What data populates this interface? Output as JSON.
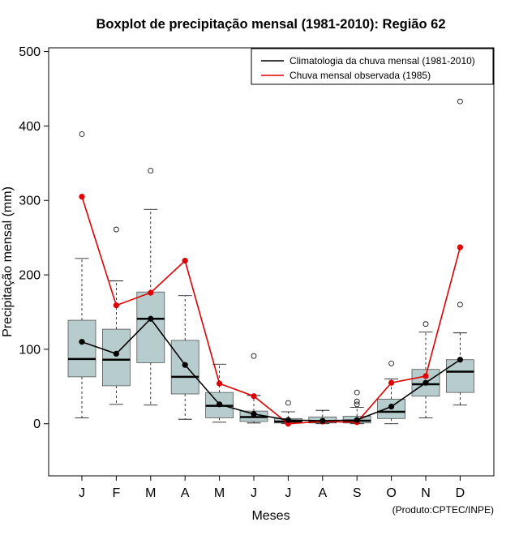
{
  "chart_data": {
    "type": "boxplot",
    "title": "Boxplot de precipitação mensal (1981-2010): Região 62",
    "xlabel": "Meses",
    "ylabel": "Precipitação mensal (mm)",
    "ylim": [
      -70,
      505
    ],
    "yticks": [
      0,
      100,
      200,
      300,
      400,
      500
    ],
    "categories": [
      "J",
      "F",
      "M",
      "A",
      "M",
      "J",
      "J",
      "A",
      "S",
      "O",
      "N",
      "D"
    ],
    "boxes": [
      {
        "min": 8,
        "q1": 63,
        "median": 87,
        "q3": 139,
        "max": 222,
        "outliers": [
          389
        ]
      },
      {
        "min": 26,
        "q1": 51,
        "median": 86,
        "q3": 127,
        "max": 192,
        "outliers": [
          261
        ]
      },
      {
        "min": 25,
        "q1": 82,
        "median": 141,
        "q3": 177,
        "max": 288,
        "outliers": [
          340
        ]
      },
      {
        "min": 6,
        "q1": 40,
        "median": 63,
        "q3": 112,
        "max": 172,
        "outliers": []
      },
      {
        "min": 2,
        "q1": 8,
        "median": 24,
        "q3": 42,
        "max": 80,
        "outliers": []
      },
      {
        "min": 1,
        "q1": 3,
        "median": 9,
        "q3": 17,
        "max": 38,
        "outliers": [
          91
        ]
      },
      {
        "min": 0,
        "q1": 1,
        "median": 3,
        "q3": 7,
        "max": 16,
        "outliers": [
          28
        ]
      },
      {
        "min": 0,
        "q1": 1,
        "median": 3,
        "q3": 9,
        "max": 18,
        "outliers": []
      },
      {
        "min": 0,
        "q1": 1,
        "median": 4,
        "q3": 10,
        "max": 22,
        "outliers": [
          42,
          30,
          26
        ]
      },
      {
        "min": 0,
        "q1": 7,
        "median": 16,
        "q3": 33,
        "max": 60,
        "outliers": [
          81
        ]
      },
      {
        "min": 8,
        "q1": 37,
        "median": 53,
        "q3": 73,
        "max": 123,
        "outliers": [
          134
        ]
      },
      {
        "min": 25,
        "q1": 42,
        "median": 70,
        "q3": 86,
        "max": 122,
        "outliers": [
          433,
          160
        ]
      }
    ],
    "series": [
      {
        "name": "Climatologia da chuva mensal (1981-2010)",
        "color": "#000000",
        "values": [
          110,
          94,
          141,
          79,
          26,
          13,
          5,
          4,
          5,
          23,
          55,
          86
        ]
      },
      {
        "name": "Chuva mensal observada (1985)",
        "color": "#e00000",
        "values": [
          305,
          159,
          176,
          219,
          54,
          37,
          0,
          3,
          2,
          55,
          64,
          237
        ]
      }
    ],
    "box_color": "#b7cdcd",
    "legend_position": "top-right",
    "note": "(Produto:CPTEC/INPE)"
  }
}
